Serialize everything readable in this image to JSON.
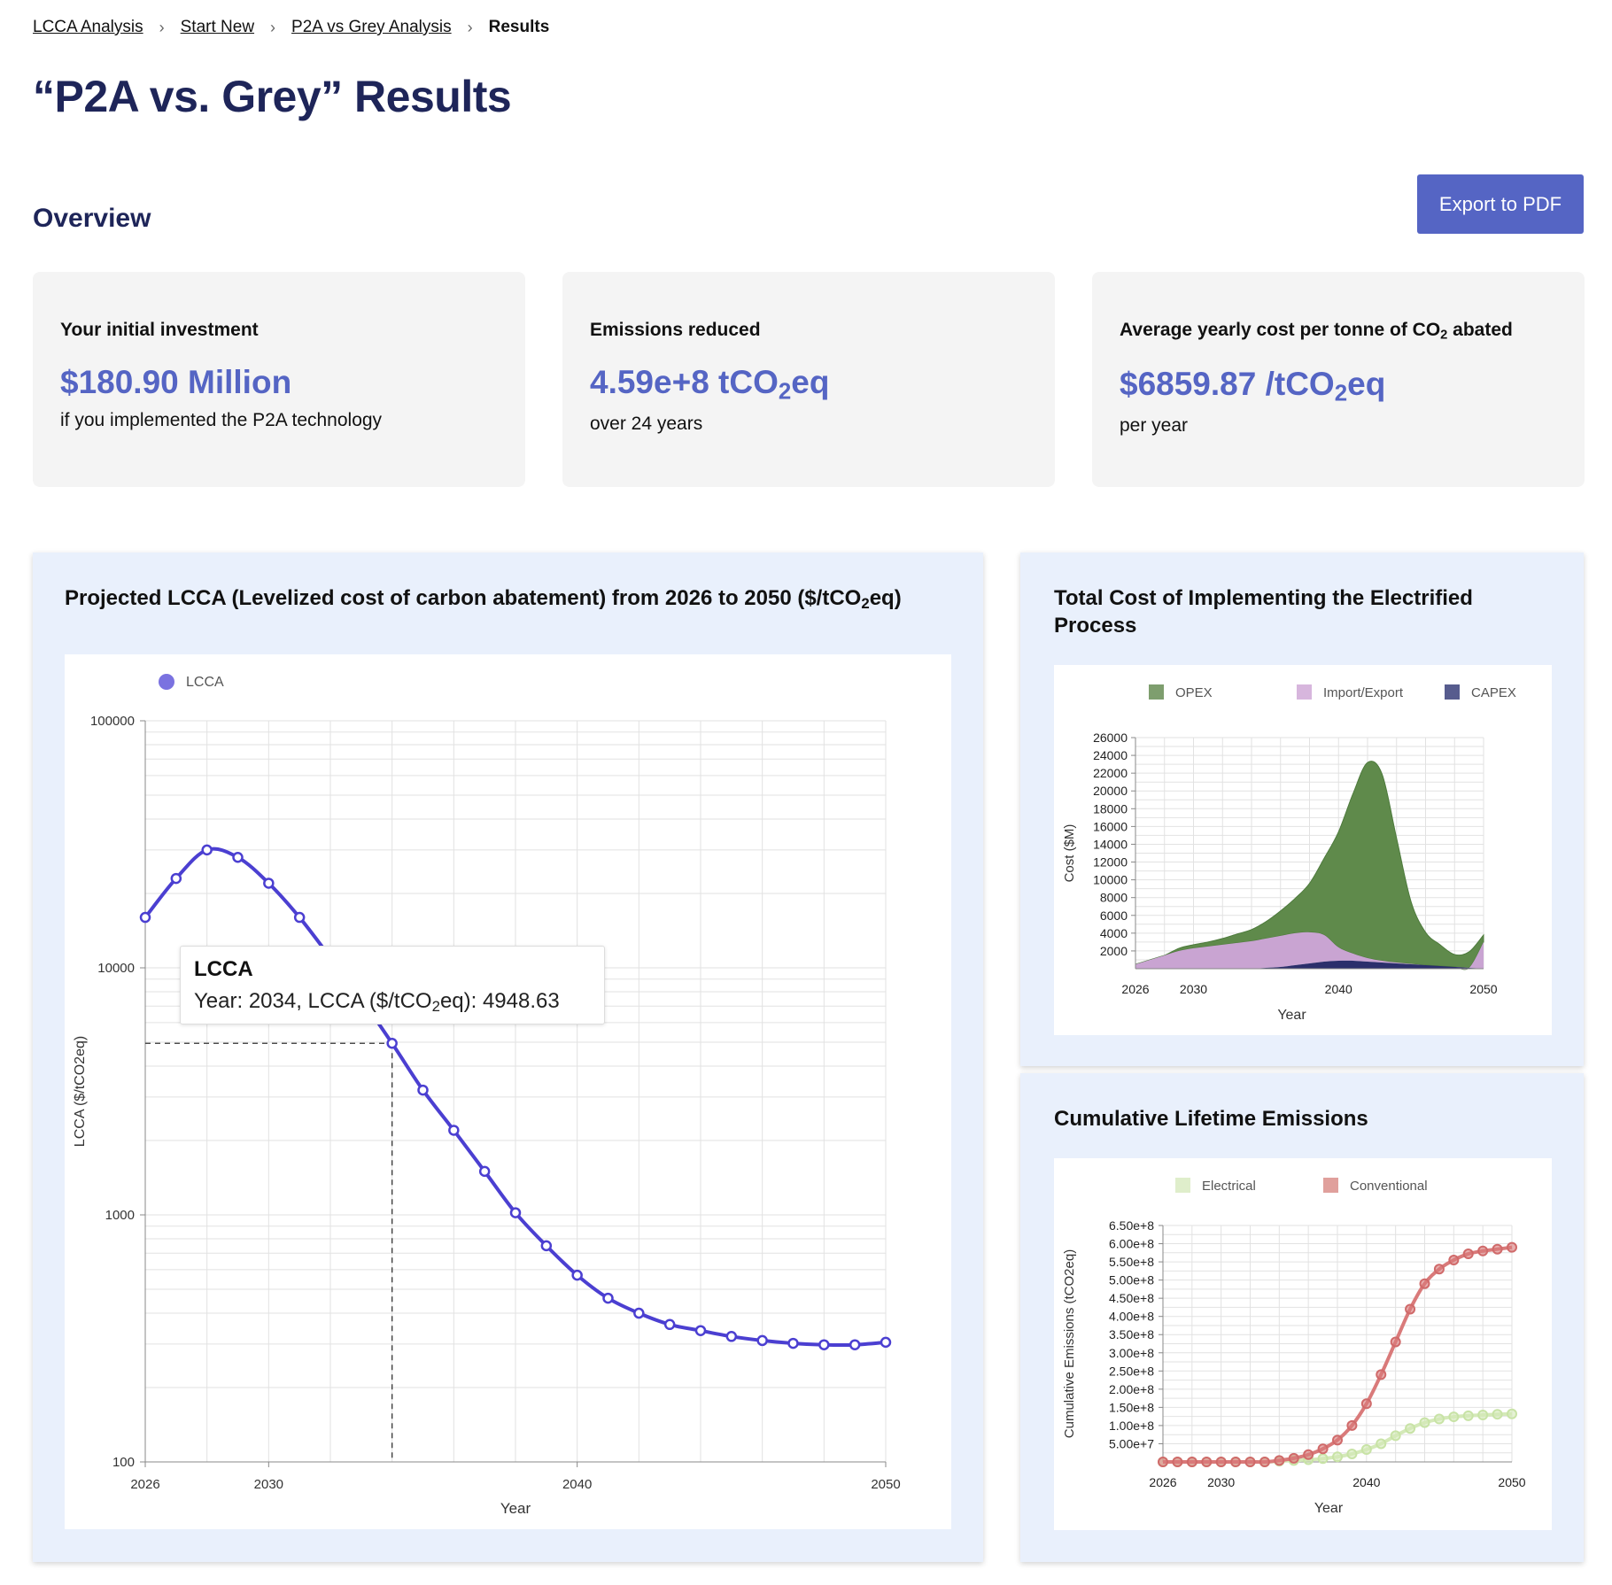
{
  "breadcrumb": {
    "items": [
      "LCCA Analysis",
      "Start New",
      "P2A vs Grey Analysis"
    ],
    "current": "Results"
  },
  "page": {
    "title": "“P2A vs. Grey” Results"
  },
  "overview": {
    "title": "Overview",
    "export_label": "Export to PDF"
  },
  "cards": [
    {
      "label": "Your initial investment",
      "value": "$180.90 Million",
      "sub": "if you implemented the P2A technology"
    },
    {
      "label": "Emissions reduced",
      "value": "4.59e+8 tCO",
      "value_sub": "2",
      "value_tail": "eq",
      "sub": "over 24 years"
    },
    {
      "label": "Average yearly cost per tonne of CO",
      "label_sub": "2",
      "label_tail": " abated",
      "value": "$6859.87 /tCO",
      "value_sub": "2",
      "value_tail": "eq",
      "sub": "per year"
    }
  ],
  "colors": {
    "accent": "#5565c4",
    "title": "#1e2559",
    "panel_bg": "#e9f0fc",
    "lcca_line": "#4b3fd1",
    "opex": "#5f8a4b",
    "import_export": "#c9a4d2",
    "capex": "#2b2f6b",
    "electrical": "#d4e9b8",
    "conventional": "#d97a7a"
  },
  "lcca_panel": {
    "title_pre": "Projected LCCA (Levelized cost of carbon abatement) from 2026 to 2050 ($/tCO",
    "title_sub": "2",
    "title_tail": "eq)"
  },
  "tooltip": {
    "title": "LCCA",
    "body_pre": "Year: 2034, LCCA ($/tCO",
    "body_sub": "2",
    "body_tail": "eq): 4948.63",
    "year": 2034,
    "value": 4948.63
  },
  "cost_panel": {
    "title": "Total Cost of Implementing the Electrified Process"
  },
  "emissions_panel": {
    "title": "Cumulative Lifetime Emissions"
  },
  "chart_data": [
    {
      "type": "line",
      "legend": [
        "LCCA"
      ],
      "xlabel": "Year",
      "ylabel": "LCCA ($/tCO2eq)",
      "yscale": "log",
      "ylim": [
        100,
        100000
      ],
      "xlim": [
        2026,
        2050
      ],
      "x_ticks": [
        "2026",
        "2030",
        "2040",
        "2050"
      ],
      "y_ticks": [
        "100",
        "1000",
        "10000",
        "100000"
      ],
      "x": [
        2026,
        2027,
        2028,
        2029,
        2030,
        2031,
        2032,
        2033,
        2034,
        2035,
        2036,
        2037,
        2038,
        2039,
        2040,
        2041,
        2042,
        2043,
        2044,
        2045,
        2046,
        2047,
        2048,
        2049,
        2050
      ],
      "series": [
        {
          "name": "LCCA",
          "values": [
            16000,
            23000,
            30000,
            28000,
            22000,
            16000,
            11000,
            7500,
            4948.63,
            3200,
            2200,
            1500,
            1020,
            750,
            570,
            460,
            400,
            360,
            340,
            322,
            310,
            302,
            298,
            298,
            305
          ]
        }
      ]
    },
    {
      "type": "area",
      "stacked": true,
      "xlabel": "Year",
      "ylabel": "Cost ($M)",
      "ylim": [
        0,
        26000
      ],
      "xlim": [
        2026,
        2050
      ],
      "x_ticks": [
        "2026",
        "2030",
        "2040",
        "2050"
      ],
      "y_ticks": [
        "2000",
        "4000",
        "6000",
        "8000",
        "10000",
        "12000",
        "14000",
        "16000",
        "18000",
        "20000",
        "22000",
        "24000",
        "26000"
      ],
      "legend": [
        "OPEX",
        "Import/Export",
        "CAPEX"
      ],
      "x": [
        2026,
        2027,
        2028,
        2029,
        2030,
        2031,
        2032,
        2033,
        2034,
        2035,
        2036,
        2037,
        2038,
        2039,
        2040,
        2041,
        2042,
        2043,
        2044,
        2045,
        2046,
        2047,
        2048,
        2049,
        2050
      ],
      "series": [
        {
          "name": "CAPEX",
          "values": [
            0,
            0,
            0,
            0,
            0,
            0,
            0,
            0,
            0,
            100,
            200,
            400,
            600,
            800,
            900,
            900,
            800,
            700,
            600,
            500,
            400,
            300,
            200,
            100,
            0
          ]
        },
        {
          "name": "Import/Export",
          "values": [
            500,
            1000,
            1500,
            2000,
            2300,
            2500,
            2700,
            2900,
            3100,
            3300,
            3500,
            3600,
            3500,
            3000,
            1500,
            800,
            400,
            200,
            100,
            50,
            0,
            0,
            0,
            0,
            3000
          ]
        },
        {
          "name": "OPEX",
          "values": [
            0,
            0,
            0,
            300,
            400,
            500,
            700,
            1000,
            1300,
            1900,
            2800,
            3900,
            5500,
            8600,
            13000,
            18000,
            22000,
            21000,
            14000,
            7000,
            3700,
            2400,
            1400,
            1800,
            800
          ]
        }
      ]
    },
    {
      "type": "line",
      "xlabel": "Year",
      "ylabel": "Cumulative Emissions (tCO2eq)",
      "ylim": [
        0,
        650000000
      ],
      "xlim": [
        2026,
        2050
      ],
      "x_ticks": [
        "2026",
        "2030",
        "2040",
        "2050"
      ],
      "y_ticks": [
        "5.00e+7",
        "1.00e+8",
        "1.50e+8",
        "2.00e+8",
        "2.50e+8",
        "3.00e+8",
        "3.50e+8",
        "4.00e+8",
        "4.50e+8",
        "5.00e+8",
        "5.50e+8",
        "6.00e+8",
        "6.50e+8"
      ],
      "legend": [
        "Electrical",
        "Conventional"
      ],
      "x": [
        2026,
        2027,
        2028,
        2029,
        2030,
        2031,
        2032,
        2033,
        2034,
        2035,
        2036,
        2037,
        2038,
        2039,
        2040,
        2041,
        2042,
        2043,
        2044,
        2045,
        2046,
        2047,
        2048,
        2049,
        2050
      ],
      "series": [
        {
          "name": "Electrical",
          "values": [
            0,
            0,
            0,
            0,
            0,
            0,
            0,
            0,
            2000000,
            4000000,
            6000000,
            9000000,
            14000000,
            22000000,
            34000000,
            50000000,
            72000000,
            92000000,
            108000000,
            118000000,
            124000000,
            127000000,
            129000000,
            131000000,
            132000000
          ]
        },
        {
          "name": "Conventional",
          "values": [
            0,
            0,
            0,
            0,
            0,
            0,
            0,
            0,
            4000000,
            10000000,
            20000000,
            36000000,
            60000000,
            100000000,
            160000000,
            240000000,
            330000000,
            420000000,
            490000000,
            530000000,
            555000000,
            572000000,
            580000000,
            585000000,
            590000000
          ]
        }
      ]
    }
  ]
}
